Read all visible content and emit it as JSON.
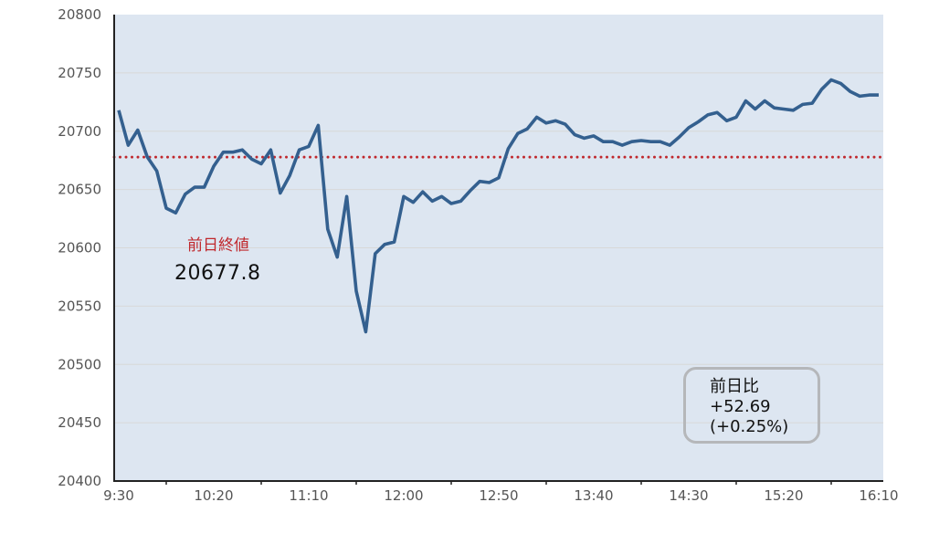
{
  "chart_data": {
    "type": "line",
    "title": "",
    "xlabel": "",
    "ylabel": "",
    "ylim": [
      20400,
      20800
    ],
    "yticks": [
      "20400",
      "20450",
      "20500",
      "20550",
      "20600",
      "20650",
      "20700",
      "20750",
      "20800"
    ],
    "xlim": [
      "9:30",
      "16:10"
    ],
    "x_interval_minutes": 5,
    "xtick_labels": [
      "9:30",
      "10:20",
      "11:10",
      "12:00",
      "12:50",
      "13:40",
      "14:30",
      "15:20",
      "16:10"
    ],
    "grid": "horizontal",
    "series": [
      {
        "color": "#34608f",
        "values": [
          20718,
          20688,
          20701,
          20678,
          20666,
          20634,
          20630,
          20646,
          20652,
          20652,
          20670,
          20682,
          20682,
          20684,
          20676,
          20672,
          20684,
          20647,
          20662,
          20684,
          20687,
          20705,
          20616,
          20592,
          20644,
          20563,
          20528,
          20595,
          20603,
          20605,
          20644,
          20639,
          20648,
          20640,
          20644,
          20638,
          20640,
          20649,
          20657,
          20656,
          20660,
          20685,
          20698,
          20702,
          20712,
          20707,
          20709,
          20706,
          20697,
          20694,
          20696,
          20691,
          20691,
          20688,
          20691,
          20692,
          20691,
          20691,
          20688,
          20695,
          20703,
          20708,
          20714,
          20716,
          20709,
          20712,
          20726,
          20719,
          20726,
          20720,
          20719,
          20718,
          20723,
          20724,
          20736,
          20744,
          20741,
          20734,
          20730,
          20731,
          20731
        ]
      }
    ],
    "reference_line": {
      "value": 20677.8,
      "color": "#c0282d",
      "style": "dotted"
    },
    "annotations": {
      "prev_close_label": "前日終値",
      "prev_close_value": "20677.8",
      "change_label": "前日比",
      "change_value": "+52.69",
      "change_pct": "(+0.25%)"
    },
    "colors": {
      "plot_background": "#dde6f1",
      "grid": "#d8d8d8",
      "axis": "#222222"
    }
  }
}
